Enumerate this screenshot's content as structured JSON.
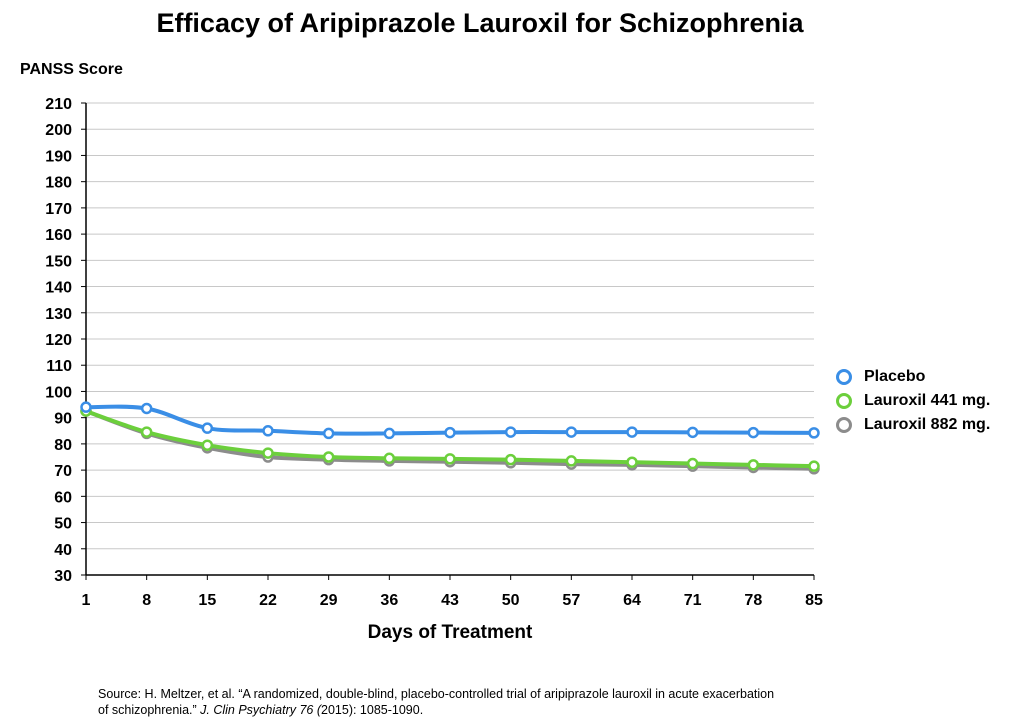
{
  "chart_data": {
    "type": "line",
    "title": "Efficacy of Aripiprazole Lauroxil for Schizophrenia",
    "xlabel": "Days of Treatment",
    "ylabel": "PANSS Score",
    "x": [
      1,
      8,
      15,
      22,
      29,
      36,
      43,
      50,
      57,
      64,
      71,
      78,
      85
    ],
    "ylim": [
      30,
      210
    ],
    "yticks": [
      30,
      40,
      50,
      60,
      70,
      80,
      90,
      100,
      110,
      120,
      130,
      140,
      150,
      160,
      170,
      180,
      190,
      200,
      210
    ],
    "grid": true,
    "legend_position": "right",
    "series": [
      {
        "name": "Placebo",
        "color": "#3a8ee6",
        "values": [
          94,
          93.5,
          86,
          85,
          84,
          84,
          84.3,
          84.5,
          84.5,
          84.5,
          84.4,
          84.3,
          84.2
        ]
      },
      {
        "name": "Lauroxil 441 mg.",
        "color": "#6ccf3c",
        "values": [
          92.5,
          84.5,
          79.5,
          76.5,
          75,
          74.5,
          74.3,
          74,
          73.5,
          73,
          72.5,
          72,
          71.5
        ]
      },
      {
        "name": "Lauroxil 882 mg.",
        "color": "#8c8c8c",
        "values": [
          92.5,
          84,
          78.5,
          75,
          74,
          73.5,
          73.2,
          72.8,
          72.3,
          72,
          71.5,
          71,
          70.5
        ]
      }
    ]
  },
  "source": {
    "line1": "Source: H. Meltzer, et al.  “A randomized, double-blind, placebo-controlled trial of aripiprazole lauroxil in acute exacerbation",
    "line2_plain": "of schizophrenia.” ",
    "line2_journal": "J. Clin Psychiatry 76 (",
    "line2_end": "2015): 1085-1090."
  }
}
